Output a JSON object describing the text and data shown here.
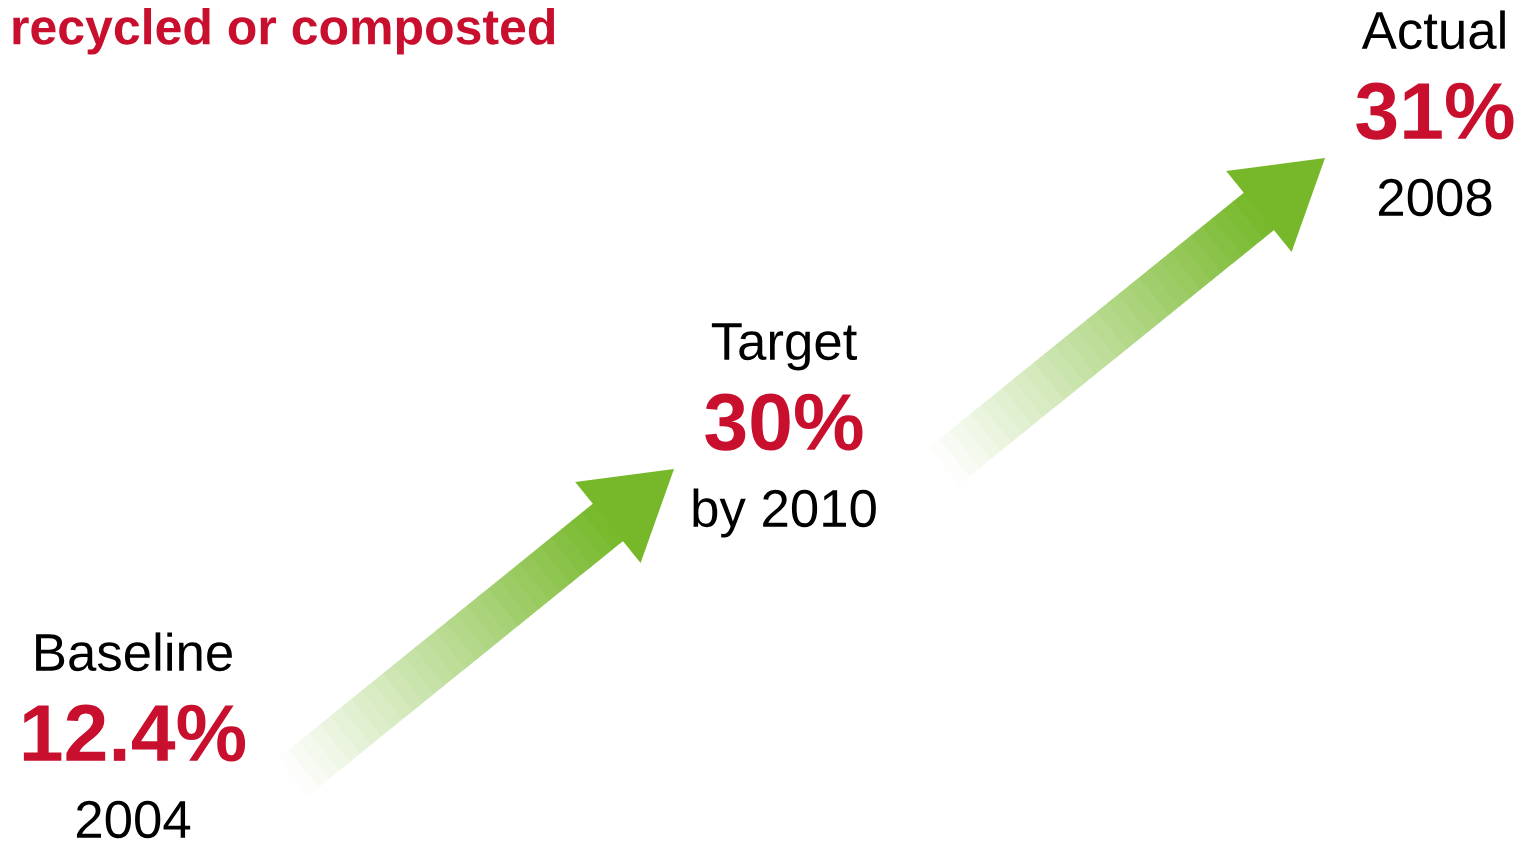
{
  "chart_data": {
    "type": "other",
    "title": "recycled or composted",
    "categories": [
      "Baseline",
      "Target",
      "Actual"
    ],
    "values": [
      12.4,
      30,
      31
    ],
    "value_labels": [
      "12.4%",
      "30%",
      "31%"
    ],
    "annotations": [
      "2004",
      "by 2010",
      "2008"
    ],
    "color": "#c8102e"
  }
}
